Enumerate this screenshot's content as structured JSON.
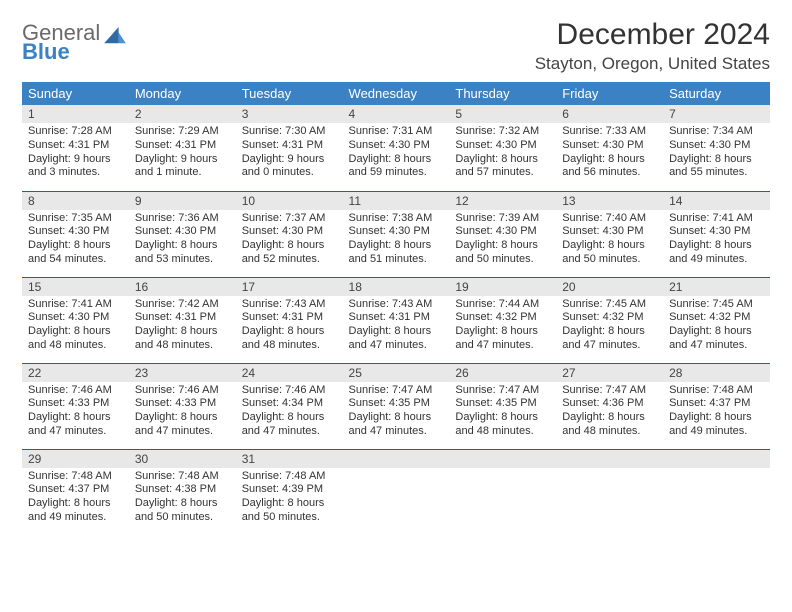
{
  "logo": {
    "line1": "General",
    "line2": "Blue"
  },
  "title": "December 2024",
  "location": "Stayton, Oregon, United States",
  "colors": {
    "header_bg": "#3b82c4",
    "daynum_bg": "#e8e8e8",
    "row_divider": "#2b5f8a",
    "text": "#333333",
    "logo_gray": "#6a6a6a",
    "logo_blue": "#3b82c4",
    "background": "#ffffff"
  },
  "typography": {
    "title_fontsize": 30,
    "location_fontsize": 17,
    "header_fontsize": 13,
    "cell_fontsize": 11
  },
  "weekdays": [
    "Sunday",
    "Monday",
    "Tuesday",
    "Wednesday",
    "Thursday",
    "Friday",
    "Saturday"
  ],
  "weeks": [
    [
      {
        "day": "1",
        "sunrise": "Sunrise: 7:28 AM",
        "sunset": "Sunset: 4:31 PM",
        "daylight": "Daylight: 9 hours and 3 minutes."
      },
      {
        "day": "2",
        "sunrise": "Sunrise: 7:29 AM",
        "sunset": "Sunset: 4:31 PM",
        "daylight": "Daylight: 9 hours and 1 minute."
      },
      {
        "day": "3",
        "sunrise": "Sunrise: 7:30 AM",
        "sunset": "Sunset: 4:31 PM",
        "daylight": "Daylight: 9 hours and 0 minutes."
      },
      {
        "day": "4",
        "sunrise": "Sunrise: 7:31 AM",
        "sunset": "Sunset: 4:30 PM",
        "daylight": "Daylight: 8 hours and 59 minutes."
      },
      {
        "day": "5",
        "sunrise": "Sunrise: 7:32 AM",
        "sunset": "Sunset: 4:30 PM",
        "daylight": "Daylight: 8 hours and 57 minutes."
      },
      {
        "day": "6",
        "sunrise": "Sunrise: 7:33 AM",
        "sunset": "Sunset: 4:30 PM",
        "daylight": "Daylight: 8 hours and 56 minutes."
      },
      {
        "day": "7",
        "sunrise": "Sunrise: 7:34 AM",
        "sunset": "Sunset: 4:30 PM",
        "daylight": "Daylight: 8 hours and 55 minutes."
      }
    ],
    [
      {
        "day": "8",
        "sunrise": "Sunrise: 7:35 AM",
        "sunset": "Sunset: 4:30 PM",
        "daylight": "Daylight: 8 hours and 54 minutes."
      },
      {
        "day": "9",
        "sunrise": "Sunrise: 7:36 AM",
        "sunset": "Sunset: 4:30 PM",
        "daylight": "Daylight: 8 hours and 53 minutes."
      },
      {
        "day": "10",
        "sunrise": "Sunrise: 7:37 AM",
        "sunset": "Sunset: 4:30 PM",
        "daylight": "Daylight: 8 hours and 52 minutes."
      },
      {
        "day": "11",
        "sunrise": "Sunrise: 7:38 AM",
        "sunset": "Sunset: 4:30 PM",
        "daylight": "Daylight: 8 hours and 51 minutes."
      },
      {
        "day": "12",
        "sunrise": "Sunrise: 7:39 AM",
        "sunset": "Sunset: 4:30 PM",
        "daylight": "Daylight: 8 hours and 50 minutes."
      },
      {
        "day": "13",
        "sunrise": "Sunrise: 7:40 AM",
        "sunset": "Sunset: 4:30 PM",
        "daylight": "Daylight: 8 hours and 50 minutes."
      },
      {
        "day": "14",
        "sunrise": "Sunrise: 7:41 AM",
        "sunset": "Sunset: 4:30 PM",
        "daylight": "Daylight: 8 hours and 49 minutes."
      }
    ],
    [
      {
        "day": "15",
        "sunrise": "Sunrise: 7:41 AM",
        "sunset": "Sunset: 4:30 PM",
        "daylight": "Daylight: 8 hours and 48 minutes."
      },
      {
        "day": "16",
        "sunrise": "Sunrise: 7:42 AM",
        "sunset": "Sunset: 4:31 PM",
        "daylight": "Daylight: 8 hours and 48 minutes."
      },
      {
        "day": "17",
        "sunrise": "Sunrise: 7:43 AM",
        "sunset": "Sunset: 4:31 PM",
        "daylight": "Daylight: 8 hours and 48 minutes."
      },
      {
        "day": "18",
        "sunrise": "Sunrise: 7:43 AM",
        "sunset": "Sunset: 4:31 PM",
        "daylight": "Daylight: 8 hours and 47 minutes."
      },
      {
        "day": "19",
        "sunrise": "Sunrise: 7:44 AM",
        "sunset": "Sunset: 4:32 PM",
        "daylight": "Daylight: 8 hours and 47 minutes."
      },
      {
        "day": "20",
        "sunrise": "Sunrise: 7:45 AM",
        "sunset": "Sunset: 4:32 PM",
        "daylight": "Daylight: 8 hours and 47 minutes."
      },
      {
        "day": "21",
        "sunrise": "Sunrise: 7:45 AM",
        "sunset": "Sunset: 4:32 PM",
        "daylight": "Daylight: 8 hours and 47 minutes."
      }
    ],
    [
      {
        "day": "22",
        "sunrise": "Sunrise: 7:46 AM",
        "sunset": "Sunset: 4:33 PM",
        "daylight": "Daylight: 8 hours and 47 minutes."
      },
      {
        "day": "23",
        "sunrise": "Sunrise: 7:46 AM",
        "sunset": "Sunset: 4:33 PM",
        "daylight": "Daylight: 8 hours and 47 minutes."
      },
      {
        "day": "24",
        "sunrise": "Sunrise: 7:46 AM",
        "sunset": "Sunset: 4:34 PM",
        "daylight": "Daylight: 8 hours and 47 minutes."
      },
      {
        "day": "25",
        "sunrise": "Sunrise: 7:47 AM",
        "sunset": "Sunset: 4:35 PM",
        "daylight": "Daylight: 8 hours and 47 minutes."
      },
      {
        "day": "26",
        "sunrise": "Sunrise: 7:47 AM",
        "sunset": "Sunset: 4:35 PM",
        "daylight": "Daylight: 8 hours and 48 minutes."
      },
      {
        "day": "27",
        "sunrise": "Sunrise: 7:47 AM",
        "sunset": "Sunset: 4:36 PM",
        "daylight": "Daylight: 8 hours and 48 minutes."
      },
      {
        "day": "28",
        "sunrise": "Sunrise: 7:48 AM",
        "sunset": "Sunset: 4:37 PM",
        "daylight": "Daylight: 8 hours and 49 minutes."
      }
    ],
    [
      {
        "day": "29",
        "sunrise": "Sunrise: 7:48 AM",
        "sunset": "Sunset: 4:37 PM",
        "daylight": "Daylight: 8 hours and 49 minutes."
      },
      {
        "day": "30",
        "sunrise": "Sunrise: 7:48 AM",
        "sunset": "Sunset: 4:38 PM",
        "daylight": "Daylight: 8 hours and 50 minutes."
      },
      {
        "day": "31",
        "sunrise": "Sunrise: 7:48 AM",
        "sunset": "Sunset: 4:39 PM",
        "daylight": "Daylight: 8 hours and 50 minutes."
      },
      null,
      null,
      null,
      null
    ]
  ]
}
